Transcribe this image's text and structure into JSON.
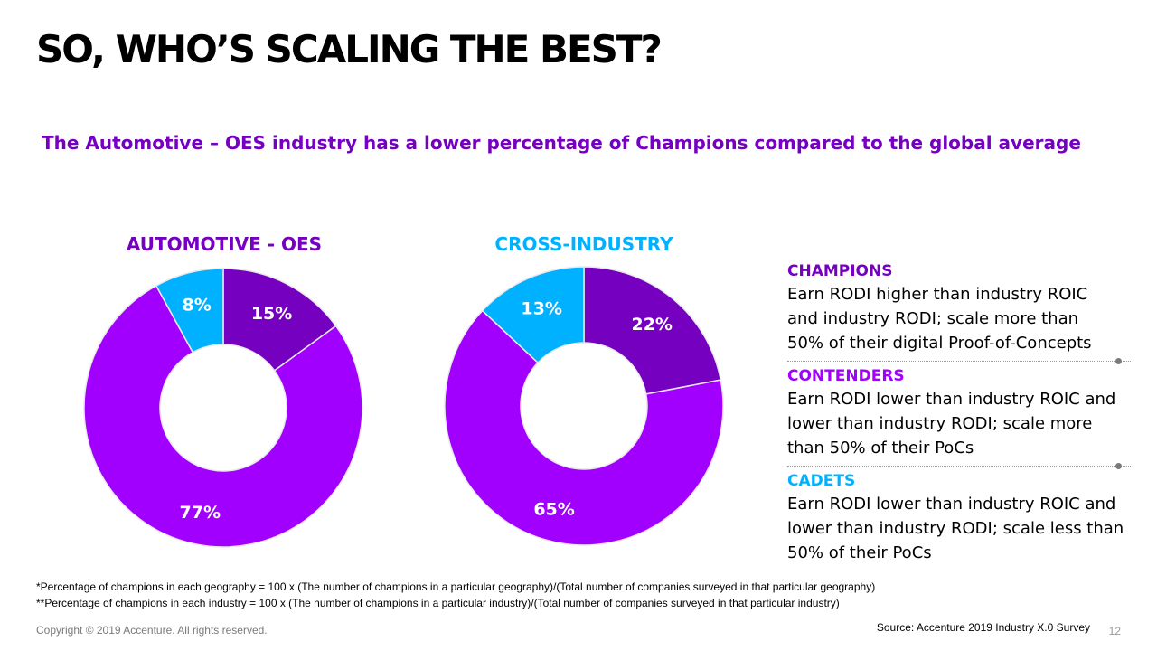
{
  "title": "SO, WHO’S SCALING THE BEST?",
  "subtitle": "The Automotive – OES industry has a lower percentage of Champions compared to the global average",
  "chart_data": [
    {
      "type": "pie",
      "title": "AUTOMOTIVE - OES",
      "categories": [
        "CHAMPIONS",
        "CONTENDERS",
        "CADETS"
      ],
      "values": [
        15,
        77,
        8
      ],
      "labels": [
        "15%",
        "77%",
        "8%"
      ],
      "colors": [
        "#7500c0",
        "#a100ff",
        "#00b1ff"
      ]
    },
    {
      "type": "pie",
      "title": "CROSS-INDUSTRY",
      "categories": [
        "CHAMPIONS",
        "CONTENDERS",
        "CADETS"
      ],
      "values": [
        22,
        65,
        13
      ],
      "labels": [
        "22%",
        "65%",
        "13%"
      ],
      "colors": [
        "#7500c0",
        "#a100ff",
        "#00b1ff"
      ]
    }
  ],
  "legend": [
    {
      "name": "CHAMPIONS",
      "color": "#7500c0",
      "description": "Earn RODI higher than industry ROIC and industry RODI; scale more than 50% of their digital Proof-of-Concepts"
    },
    {
      "name": "CONTENDERS",
      "color": "#a100ff",
      "description": "Earn RODI lower than industry ROIC and lower than industry RODI; scale more than 50% of their PoCs"
    },
    {
      "name": "CADETS",
      "color": "#00b1ff",
      "description": "Earn RODI lower than industry ROIC and lower than industry RODI; scale less than 50% of their PoCs"
    }
  ],
  "footnotes": [
    "*Percentage of champions in each geography = 100 x (The number of champions in a particular geography)/(Total number of companies surveyed in that particular geography)",
    "**Percentage of champions in each industry = 100 x (The number of champions in a particular industry)/(Total number of companies surveyed in that particular industry)"
  ],
  "copyright": "Copyright © 2019 Accenture. All rights reserved.",
  "source": "Source: Accenture 2019 Industry X.0 Survey",
  "page_number": "12"
}
